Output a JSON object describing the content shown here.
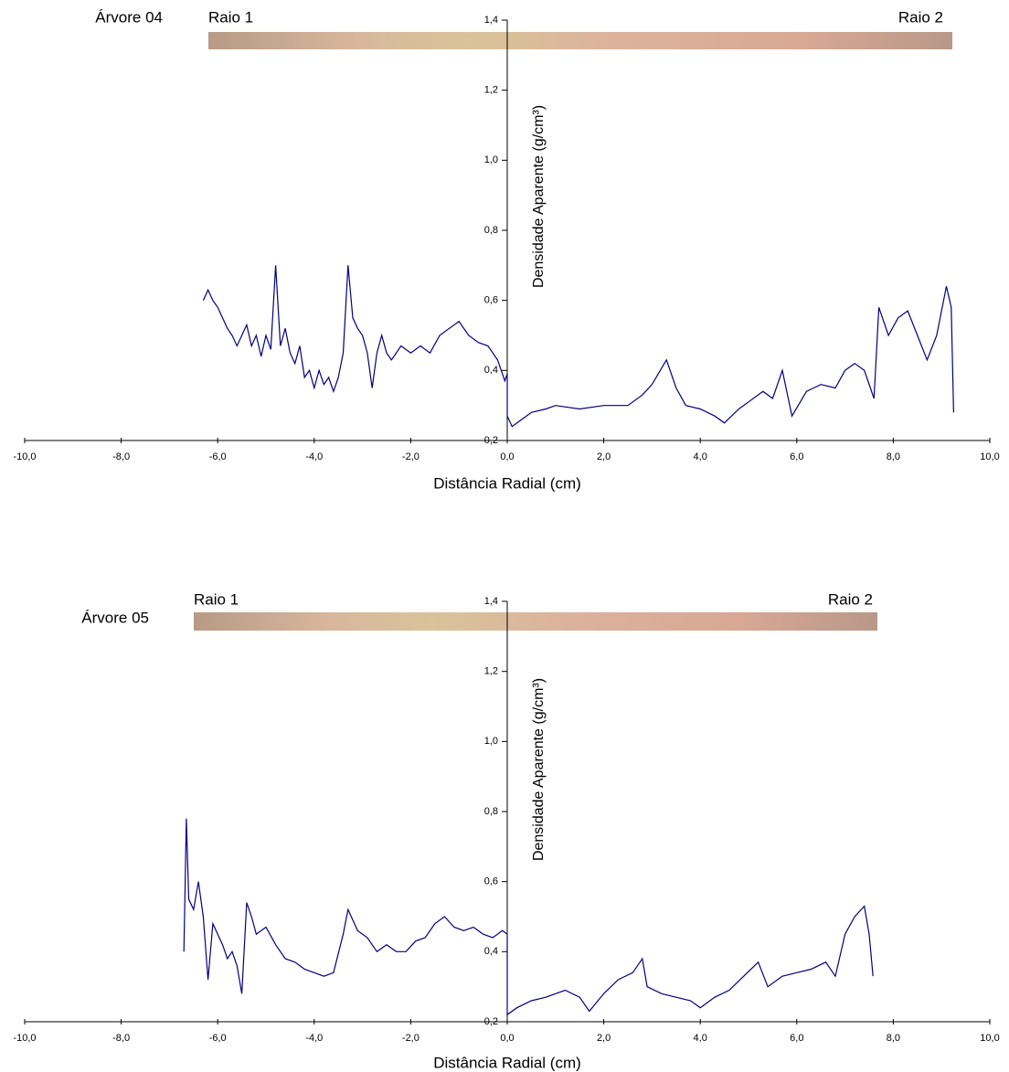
{
  "chart_data": [
    {
      "type": "line",
      "tree_label": "Árvore 04",
      "radius_labels": [
        "Raio 1",
        "Raio 2"
      ],
      "xlabel": "Distância Radial (cm)",
      "ylabel": "Densidade Aparente (g/cm³)",
      "xlim": [
        -10,
        10
      ],
      "ylim": [
        0.2,
        1.4
      ],
      "xticks": [
        {
          "value": -10,
          "label": "-10,0"
        },
        {
          "value": -8,
          "label": "-8,0"
        },
        {
          "value": -6,
          "label": "-6,0"
        },
        {
          "value": -4,
          "label": "-4,0"
        },
        {
          "value": -2,
          "label": "-2,0"
        },
        {
          "value": 0,
          "label": "0,0"
        },
        {
          "value": 2,
          "label": "2,0"
        },
        {
          "value": 4,
          "label": "4,0"
        },
        {
          "value": 6,
          "label": "6,0"
        },
        {
          "value": 8,
          "label": "8,0"
        },
        {
          "value": 10,
          "label": "10,0"
        }
      ],
      "yticks": [
        {
          "value": 0.2,
          "label": "0,2"
        },
        {
          "value": 0.4,
          "label": "0,4"
        },
        {
          "value": 0.6,
          "label": "0,6"
        },
        {
          "value": 0.8,
          "label": "0,8"
        },
        {
          "value": 1.0,
          "label": "1,0"
        },
        {
          "value": 1.2,
          "label": "1,2"
        },
        {
          "value": 1.4,
          "label": "1,4"
        }
      ],
      "series": [
        {
          "color": "#000080",
          "x": [
            -6.3,
            -6.2,
            -6.1,
            -6.0,
            -5.9,
            -5.8,
            -5.7,
            -5.6,
            -5.5,
            -5.4,
            -5.3,
            -5.2,
            -5.1,
            -5.0,
            -4.9,
            -4.8,
            -4.7,
            -4.6,
            -4.5,
            -4.4,
            -4.3,
            -4.2,
            -4.1,
            -4.0,
            -3.9,
            -3.8,
            -3.7,
            -3.6,
            -3.5,
            -3.4,
            -3.3,
            -3.2,
            -3.1,
            -3.0,
            -2.9,
            -2.8,
            -2.7,
            -2.6,
            -2.5,
            -2.4,
            -2.2,
            -2.0,
            -1.8,
            -1.6,
            -1.4,
            -1.2,
            -1.0,
            -0.8,
            -0.6,
            -0.4,
            -0.2,
            -0.05,
            0,
            0,
            0.1,
            0.3,
            0.5,
            0.8,
            1.0,
            1.5,
            2.0,
            2.5,
            2.8,
            3.0,
            3.3,
            3.5,
            3.7,
            4.0,
            4.3,
            4.5,
            4.8,
            5.0,
            5.3,
            5.5,
            5.7,
            5.9,
            6.2,
            6.5,
            6.8,
            7.0,
            7.2,
            7.4,
            7.6,
            7.7,
            7.9,
            8.1,
            8.3,
            8.5,
            8.7,
            8.9,
            9.1,
            9.2,
            9.25
          ],
          "values": [
            0.6,
            0.63,
            0.6,
            0.58,
            0.55,
            0.52,
            0.5,
            0.47,
            0.5,
            0.53,
            0.47,
            0.5,
            0.44,
            0.5,
            0.46,
            0.7,
            0.47,
            0.52,
            0.45,
            0.42,
            0.47,
            0.38,
            0.4,
            0.35,
            0.4,
            0.36,
            0.38,
            0.34,
            0.38,
            0.45,
            0.7,
            0.55,
            0.52,
            0.5,
            0.45,
            0.35,
            0.45,
            0.5,
            0.45,
            0.43,
            0.47,
            0.45,
            0.47,
            0.45,
            0.5,
            0.52,
            0.54,
            0.5,
            0.48,
            0.47,
            0.43,
            0.37,
            0.39,
            0.27,
            0.24,
            0.26,
            0.28,
            0.29,
            0.3,
            0.29,
            0.3,
            0.3,
            0.33,
            0.36,
            0.43,
            0.35,
            0.3,
            0.29,
            0.27,
            0.25,
            0.29,
            0.31,
            0.34,
            0.32,
            0.4,
            0.27,
            0.34,
            0.36,
            0.35,
            0.4,
            0.42,
            0.4,
            0.32,
            0.58,
            0.5,
            0.55,
            0.57,
            0.5,
            0.43,
            0.5,
            0.64,
            0.58,
            0.28
          ]
        }
      ]
    },
    {
      "type": "line",
      "tree_label": "Árvore 05",
      "radius_labels": [
        "Raio 1",
        "Raio 2"
      ],
      "xlabel": "Distância Radial (cm)",
      "ylabel": "Densidade Aparente (g/cm³)",
      "xlim": [
        -10,
        10
      ],
      "ylim": [
        0.2,
        1.4
      ],
      "xticks": [
        {
          "value": -10,
          "label": "-10,0"
        },
        {
          "value": -8,
          "label": "-8,0"
        },
        {
          "value": -6,
          "label": "-6,0"
        },
        {
          "value": -4,
          "label": "-4,0"
        },
        {
          "value": -2,
          "label": "-2,0"
        },
        {
          "value": 0,
          "label": "0,0"
        },
        {
          "value": 2,
          "label": "2,0"
        },
        {
          "value": 4,
          "label": "4,0"
        },
        {
          "value": 6,
          "label": "6,0"
        },
        {
          "value": 8,
          "label": "8,0"
        },
        {
          "value": 10,
          "label": "10,0"
        }
      ],
      "yticks": [
        {
          "value": 0.2,
          "label": "0,2"
        },
        {
          "value": 0.4,
          "label": "0,4"
        },
        {
          "value": 0.6,
          "label": "0,6"
        },
        {
          "value": 0.8,
          "label": "0,8"
        },
        {
          "value": 1.0,
          "label": "1,0"
        },
        {
          "value": 1.2,
          "label": "1,2"
        },
        {
          "value": 1.4,
          "label": "1,4"
        }
      ],
      "series": [
        {
          "color": "#000080",
          "x": [
            -6.7,
            -6.65,
            -6.6,
            -6.5,
            -6.4,
            -6.3,
            -6.2,
            -6.1,
            -6.0,
            -5.9,
            -5.8,
            -5.7,
            -5.6,
            -5.5,
            -5.4,
            -5.3,
            -5.2,
            -5.0,
            -4.8,
            -4.6,
            -4.4,
            -4.2,
            -4.0,
            -3.8,
            -3.6,
            -3.4,
            -3.3,
            -3.1,
            -2.9,
            -2.7,
            -2.5,
            -2.3,
            -2.1,
            -1.9,
            -1.7,
            -1.5,
            -1.3,
            -1.1,
            -0.9,
            -0.7,
            -0.5,
            -0.3,
            -0.1,
            0,
            0,
            0.2,
            0.5,
            0.8,
            1.2,
            1.5,
            1.7,
            2.0,
            2.3,
            2.6,
            2.8,
            2.9,
            3.2,
            3.5,
            3.8,
            4.0,
            4.3,
            4.6,
            4.9,
            5.2,
            5.4,
            5.7,
            6.0,
            6.3,
            6.6,
            6.8,
            7.0,
            7.2,
            7.4,
            7.5,
            7.58
          ],
          "values": [
            0.4,
            0.78,
            0.55,
            0.52,
            0.6,
            0.5,
            0.32,
            0.48,
            0.45,
            0.42,
            0.38,
            0.4,
            0.36,
            0.28,
            0.54,
            0.5,
            0.45,
            0.47,
            0.42,
            0.38,
            0.37,
            0.35,
            0.34,
            0.33,
            0.34,
            0.45,
            0.52,
            0.46,
            0.44,
            0.4,
            0.42,
            0.4,
            0.4,
            0.43,
            0.44,
            0.48,
            0.5,
            0.47,
            0.46,
            0.47,
            0.45,
            0.44,
            0.46,
            0.45,
            0.22,
            0.24,
            0.26,
            0.27,
            0.29,
            0.27,
            0.23,
            0.28,
            0.32,
            0.34,
            0.38,
            0.3,
            0.28,
            0.27,
            0.26,
            0.24,
            0.27,
            0.29,
            0.33,
            0.37,
            0.3,
            0.33,
            0.34,
            0.35,
            0.37,
            0.33,
            0.45,
            0.5,
            0.53,
            0.45,
            0.33
          ]
        }
      ]
    }
  ]
}
